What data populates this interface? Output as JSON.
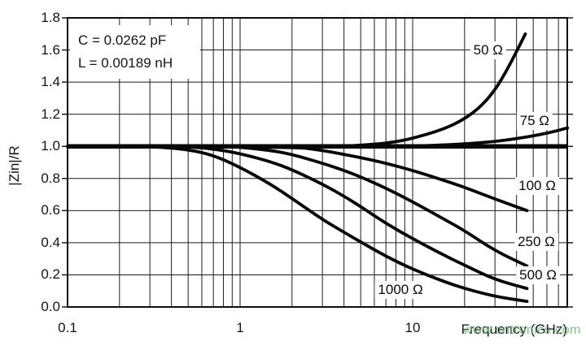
{
  "figure": {
    "background": "#ffffff",
    "grid_color": "#1c1c1c",
    "curve_color": "#070707",
    "watermark": "www.cntronics.com",
    "watermark_color": "#69bb73"
  },
  "chart_data": {
    "type": "line",
    "title": "",
    "xlabel": "Frequency (GHz)",
    "ylabel": "|Zin|/R",
    "x_scale": "log",
    "x_range_ghz": [
      0.1,
      79
    ],
    "ylim": [
      0.0,
      1.8
    ],
    "y_tick_step": 0.2,
    "y_tick_labels": [
      "1.8",
      "1.6",
      "1.4",
      "1.2",
      "1.0",
      "0.8",
      "0.6",
      "0.4",
      "0.2",
      "0.0"
    ],
    "x_tick_labels": [
      {
        "f": 0.1,
        "label": "0.1"
      },
      {
        "f": 1,
        "label": "1"
      },
      {
        "f": 10,
        "label": "10"
      }
    ],
    "grid": "log-minor-on",
    "annotation_lines": [
      "C = 0.0262 pF",
      "L = 0.00189 nH"
    ],
    "reference_line_value": 1.0,
    "series": [
      {
        "name": "50 Ω",
        "label_pos": {
          "f": 27.4,
          "v": 1.6
        },
        "points": [
          [
            0.1,
            1.0
          ],
          [
            3,
            1.0
          ],
          [
            4,
            1.002
          ],
          [
            6,
            1.012
          ],
          [
            8,
            1.028
          ],
          [
            10,
            1.05
          ],
          [
            15,
            1.105
          ],
          [
            20,
            1.17
          ],
          [
            25,
            1.25
          ],
          [
            30,
            1.35
          ],
          [
            35,
            1.47
          ],
          [
            40,
            1.59
          ],
          [
            45,
            1.7
          ]
        ]
      },
      {
        "name": "75 Ω",
        "label_pos": {
          "f": 50.9,
          "v": 1.16
        },
        "points": [
          [
            0.1,
            1.0
          ],
          [
            8,
            1.0
          ],
          [
            10,
            1.002
          ],
          [
            15,
            1.008
          ],
          [
            20,
            1.015
          ],
          [
            30,
            1.03
          ],
          [
            40,
            1.048
          ],
          [
            50,
            1.065
          ],
          [
            65,
            1.09
          ],
          [
            79,
            1.115
          ]
        ]
      },
      {
        "name": "100 Ω",
        "label_pos": {
          "f": 52.7,
          "v": 0.755
        },
        "points": [
          [
            0.1,
            1.0
          ],
          [
            2,
            1.0
          ],
          [
            3,
            0.975
          ],
          [
            4,
            0.95
          ],
          [
            5,
            0.93
          ],
          [
            7,
            0.895
          ],
          [
            10,
            0.85
          ],
          [
            15,
            0.79
          ],
          [
            20,
            0.745
          ],
          [
            30,
            0.672
          ],
          [
            46,
            0.6
          ]
        ]
      },
      {
        "name": "250 Ω",
        "label_pos": {
          "f": 52.1,
          "v": 0.405
        },
        "points": [
          [
            0.1,
            1.0
          ],
          [
            0.8,
            1.0
          ],
          [
            1,
            0.995
          ],
          [
            1.5,
            0.975
          ],
          [
            2,
            0.95
          ],
          [
            3,
            0.895
          ],
          [
            4,
            0.85
          ],
          [
            5,
            0.81
          ],
          [
            7,
            0.74
          ],
          [
            10,
            0.655
          ],
          [
            15,
            0.55
          ],
          [
            20,
            0.475
          ],
          [
            30,
            0.35
          ],
          [
            46,
            0.255
          ]
        ]
      },
      {
        "name": "500 Ω",
        "label_pos": {
          "f": 53.3,
          "v": 0.195
        },
        "points": [
          [
            0.1,
            1.0
          ],
          [
            0.4,
            1.0
          ],
          [
            0.5,
            0.997
          ],
          [
            0.7,
            0.985
          ],
          [
            1,
            0.955
          ],
          [
            1.5,
            0.905
          ],
          [
            2,
            0.855
          ],
          [
            3,
            0.765
          ],
          [
            4,
            0.69
          ],
          [
            5,
            0.625
          ],
          [
            7,
            0.52
          ],
          [
            10,
            0.425
          ],
          [
            15,
            0.325
          ],
          [
            20,
            0.26
          ],
          [
            30,
            0.17
          ],
          [
            46,
            0.115
          ]
        ]
      },
      {
        "name": "1000 Ω",
        "label_pos": {
          "f": 8.5,
          "v": 0.105
        },
        "points": [
          [
            0.1,
            1.0
          ],
          [
            0.25,
            1.0
          ],
          [
            0.35,
            0.995
          ],
          [
            0.5,
            0.98
          ],
          [
            0.7,
            0.945
          ],
          [
            1,
            0.87
          ],
          [
            1.5,
            0.765
          ],
          [
            2,
            0.675
          ],
          [
            3,
            0.545
          ],
          [
            4,
            0.465
          ],
          [
            5,
            0.405
          ],
          [
            7,
            0.315
          ],
          [
            10,
            0.235
          ],
          [
            15,
            0.16
          ],
          [
            20,
            0.115
          ],
          [
            30,
            0.065
          ],
          [
            46,
            0.035
          ]
        ]
      }
    ],
    "legend_position": "inline-right-labels"
  }
}
